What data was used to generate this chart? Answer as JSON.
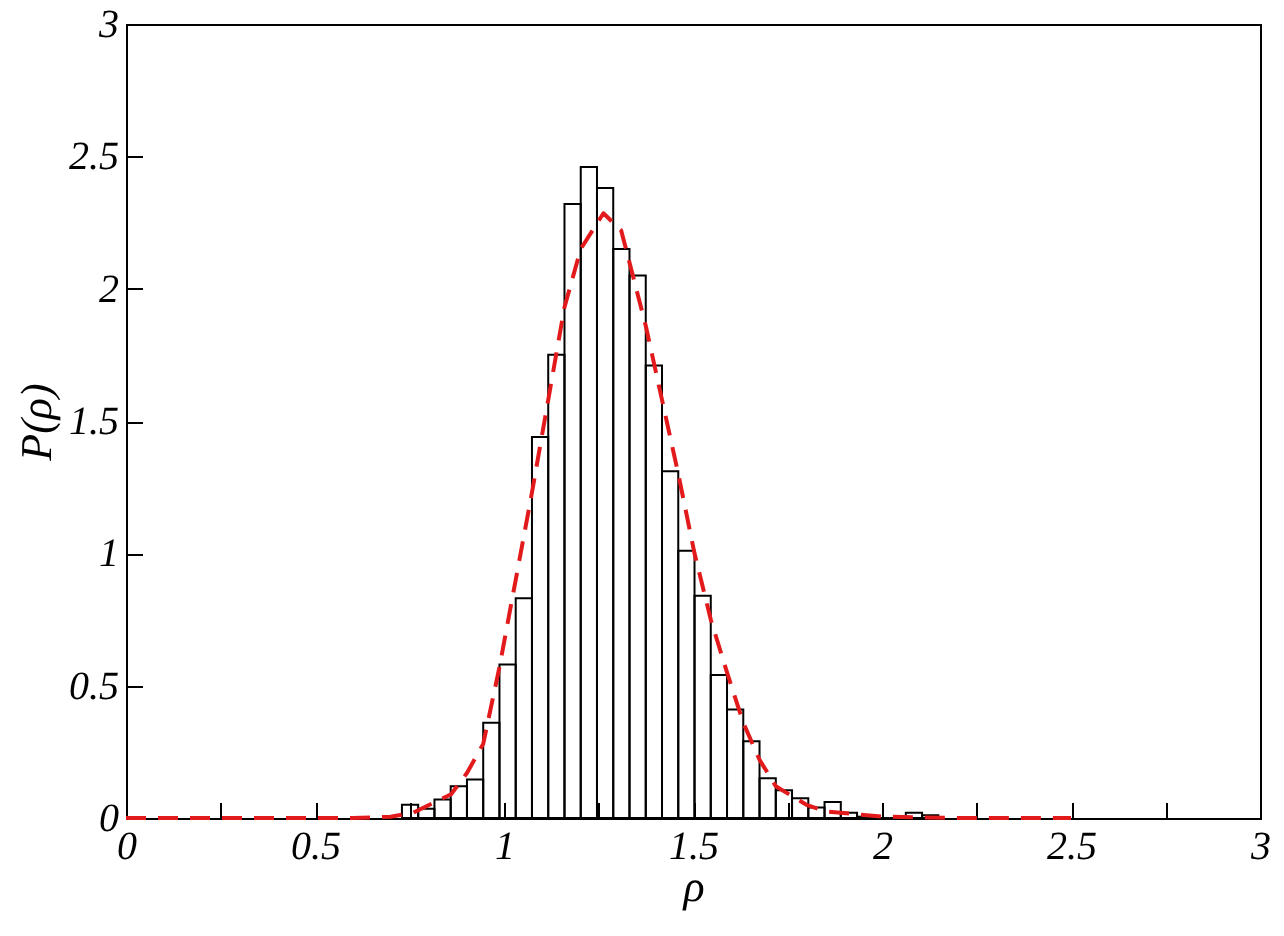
{
  "chart_data": {
    "type": "histogram",
    "xlabel": "ρ",
    "ylabel": "P(ρ)",
    "xlim": [
      0,
      3
    ],
    "ylim": [
      0,
      3
    ],
    "xticks": [
      0,
      {
        "value": 0.25,
        "label": null
      },
      0.5,
      {
        "value": 0.75,
        "label": null
      },
      1,
      {
        "value": 1.25,
        "label": null
      },
      1.5,
      {
        "value": 1.75,
        "label": null
      },
      2,
      {
        "value": 2.25,
        "label": null
      },
      2.5,
      {
        "value": 2.75,
        "label": null
      },
      3
    ],
    "yticks": [
      0,
      0.5,
      1,
      1.5,
      2,
      2.5,
      3
    ],
    "grid": false,
    "series": [
      {
        "type": "histogram",
        "color": "#000000",
        "bins": [
          0.73,
          0.773,
          0.816,
          0.859,
          0.902,
          0.945,
          0.988,
          1.031,
          1.074,
          1.117,
          1.16,
          1.203,
          1.246,
          1.289,
          1.332,
          1.375,
          1.418,
          1.461,
          1.504,
          1.547,
          1.59,
          1.633,
          1.676,
          1.719,
          1.762,
          1.805,
          1.848,
          1.891,
          1.934,
          1.977,
          2.02,
          2.063,
          2.106,
          2.149
        ],
        "values": [
          0.05,
          0.035,
          0.07,
          0.12,
          0.145,
          0.36,
          0.58,
          0.83,
          1.44,
          1.75,
          2.32,
          2.46,
          2.38,
          2.15,
          2.05,
          1.71,
          1.31,
          1.01,
          0.84,
          0.54,
          0.41,
          0.29,
          0.15,
          0.105,
          0.075,
          0.04,
          0.06,
          0.02,
          0.005,
          0,
          0,
          0.02,
          0.01
        ]
      },
      {
        "type": "line",
        "color": "#e31a1c",
        "line_style": "dashed",
        "marker": "none",
        "x": [
          0,
          0.6,
          0.7,
          0.76,
          0.86,
          0.902,
          0.945,
          0.988,
          1.031,
          1.074,
          1.117,
          1.16,
          1.203,
          1.263,
          1.31,
          1.33,
          1.375,
          1.418,
          1.461,
          1.504,
          1.547,
          1.59,
          1.633,
          1.676,
          1.719,
          1.8,
          1.85,
          2.0,
          2.2,
          2.5
        ],
        "values": [
          0,
          0,
          0.005,
          0.02,
          0.09,
          0.17,
          0.28,
          0.57,
          0.9,
          1.23,
          1.58,
          1.93,
          2.15,
          2.285,
          2.22,
          2.11,
          1.86,
          1.58,
          1.3,
          1.0,
          0.75,
          0.55,
          0.36,
          0.22,
          0.12,
          0.05,
          0.025,
          0.005,
          0,
          0
        ]
      }
    ]
  }
}
